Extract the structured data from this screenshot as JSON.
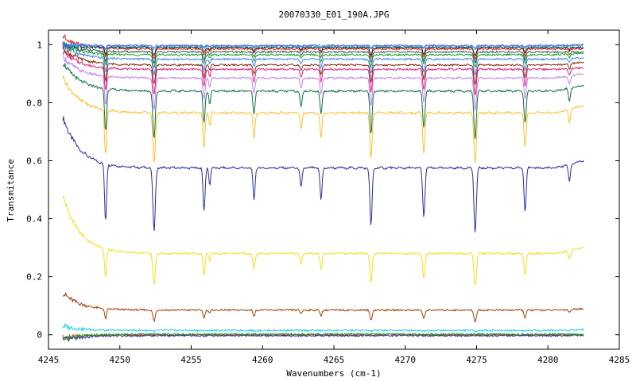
{
  "chart_data": {
    "type": "line",
    "title": "20070330_E01_190A.JPG",
    "xlabel": "Wavenumbers (cm-1)",
    "ylabel": "Transmitance",
    "xlim": [
      4245,
      4285
    ],
    "ylim": [
      -0.05,
      1.05
    ],
    "xticks": [
      "4245",
      "4250",
      "4255",
      "4260",
      "4265",
      "4270",
      "4275",
      "4280",
      "4285"
    ],
    "yticks": [
      "0",
      "0.2",
      "0.4",
      "0.6",
      "0.8",
      "1"
    ],
    "grid": false,
    "x_range_data": [
      4246,
      4282.5
    ],
    "absorption_lines": [
      {
        "x": 4249.0,
        "w": 0.1,
        "d": 1.0
      },
      {
        "x": 4252.4,
        "w": 0.12,
        "d": 1.1
      },
      {
        "x": 4255.9,
        "w": 0.1,
        "d": 0.75
      },
      {
        "x": 4256.3,
        "w": 0.08,
        "d": 0.3
      },
      {
        "x": 4259.4,
        "w": 0.1,
        "d": 0.55
      },
      {
        "x": 4262.7,
        "w": 0.1,
        "d": 0.35
      },
      {
        "x": 4264.1,
        "w": 0.1,
        "d": 0.55
      },
      {
        "x": 4267.6,
        "w": 0.11,
        "d": 1.0
      },
      {
        "x": 4271.3,
        "w": 0.11,
        "d": 0.85
      },
      {
        "x": 4274.9,
        "w": 0.12,
        "d": 1.1
      },
      {
        "x": 4278.4,
        "w": 0.1,
        "d": 0.75
      },
      {
        "x": 4281.5,
        "w": 0.1,
        "d": 0.3
      }
    ],
    "series": [
      {
        "color": "#2b2b9e",
        "baseline": 0.575,
        "start": 0.75,
        "tail": 0.6,
        "depth": 0.2
      },
      {
        "color": "#f0e020",
        "baseline": 0.28,
        "start": 0.48,
        "tail": 0.3,
        "depth": 0.1
      },
      {
        "color": "#a0420a",
        "baseline": 0.085,
        "start": 0.145,
        "tail": 0.09,
        "depth": 0.035
      },
      {
        "color": "#20d0e0",
        "baseline": 0.015,
        "start": 0.03,
        "tail": 0.018,
        "depth": 0.003
      },
      {
        "color": "#ffc030",
        "baseline": 0.765,
        "start": 0.89,
        "tail": 0.79,
        "depth": 0.16
      },
      {
        "color": "#107040",
        "baseline": 0.84,
        "start": 0.94,
        "tail": 0.86,
        "depth": 0.15
      },
      {
        "color": "#c080f0",
        "baseline": 0.885,
        "start": 0.96,
        "tail": 0.9,
        "depth": 0.1
      },
      {
        "color": "#e02080",
        "baseline": 0.915,
        "start": 0.98,
        "tail": 0.92,
        "depth": 0.08
      },
      {
        "color": "#803010",
        "baseline": 0.93,
        "start": 0.99,
        "tail": 0.94,
        "depth": 0.06
      },
      {
        "color": "#4080ff",
        "baseline": 0.95,
        "start": 1.0,
        "tail": 0.955,
        "depth": 0.05
      },
      {
        "color": "#20a020",
        "baseline": 0.965,
        "start": 1.0,
        "tail": 0.97,
        "depth": 0.04
      },
      {
        "color": "#306060",
        "baseline": 0.975,
        "start": 1.0,
        "tail": 0.975,
        "depth": 0.035
      },
      {
        "color": "#e03020",
        "baseline": 0.985,
        "start": 1.03,
        "tail": 0.985,
        "depth": 0.03
      },
      {
        "color": "#202020",
        "baseline": 0.99,
        "start": 1.0,
        "tail": 0.99,
        "depth": 0.025
      },
      {
        "color": "#00c0c0",
        "baseline": 0.995,
        "start": 1.0,
        "tail": 0.998,
        "depth": 0.01
      },
      {
        "color": "#6060ff",
        "baseline": 0.997,
        "start": 1.0,
        "tail": 0.999,
        "depth": 0.008
      },
      {
        "color": "#e03020",
        "baseline": 0.0,
        "start": -0.012,
        "tail": 0.0,
        "depth": 0.0
      },
      {
        "color": "#2020a0",
        "baseline": -0.003,
        "start": -0.02,
        "tail": -0.002,
        "depth": 0.0
      },
      {
        "color": "#20a020",
        "baseline": 0.002,
        "start": -0.015,
        "tail": 0.001,
        "depth": 0.0
      }
    ]
  }
}
